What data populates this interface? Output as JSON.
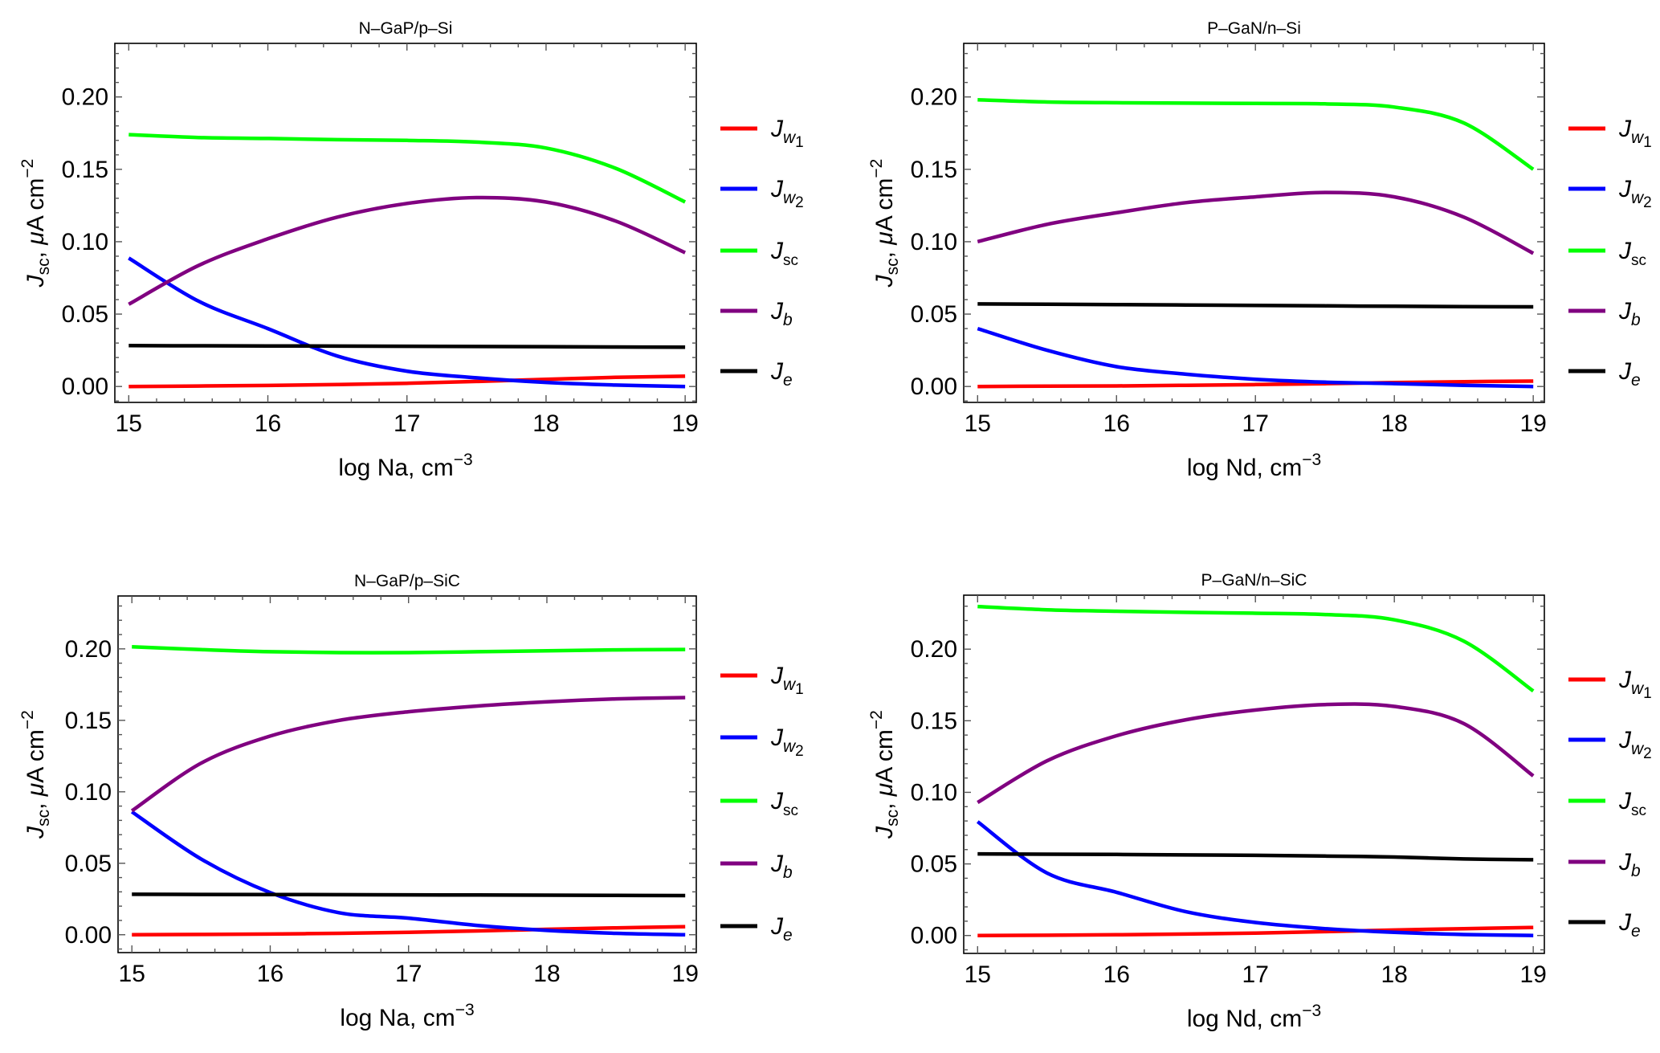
{
  "chart_data": [
    {
      "type": "line",
      "title": "N-GaP/p-Si",
      "xlabel": "log Na, cm",
      "xlabel_sup": "-3",
      "ylabel": "J_sc, μA cm^-2",
      "ylabel_parts": {
        "main": "J",
        "sub": "sc",
        "rest": ", μA cm",
        "sup": "−2"
      },
      "xlim": [
        14.9,
        19.08
      ],
      "ylim": [
        -0.011,
        0.237
      ],
      "xticks": [
        15,
        16,
        17,
        18,
        19
      ],
      "xtick_labels": [
        "15",
        "16",
        "17",
        "18",
        "19"
      ],
      "yticks": [
        0.0,
        0.05,
        0.1,
        0.15,
        0.2
      ],
      "ytick_labels": [
        "0.00",
        "0.05",
        "0.10",
        "0.15",
        "0.20"
      ],
      "grid": false,
      "legend_position": "right",
      "x": [
        15,
        15.5,
        16,
        16.5,
        17,
        17.5,
        18,
        18.5,
        19
      ],
      "series": [
        {
          "name": "J_w1",
          "label_main": "J",
          "label_sub": "w",
          "label_subsub": "1",
          "color": "#ff0000",
          "values": [
            0.0,
            0.0003,
            0.0007,
            0.0013,
            0.0022,
            0.0035,
            0.005,
            0.0063,
            0.0071
          ]
        },
        {
          "name": "J_w2",
          "label_main": "J",
          "label_sub": "w",
          "label_subsub": "2",
          "color": "#0000ff",
          "values": [
            0.0887,
            0.059,
            0.04,
            0.021,
            0.0106,
            0.006,
            0.0028,
            0.001,
            0.0
          ]
        },
        {
          "name": "J_sc",
          "label_main": "J",
          "label_sub": "sc",
          "label_subsub": "",
          "color": "#00ff00",
          "values": [
            0.174,
            0.172,
            0.1713,
            0.1705,
            0.17,
            0.1688,
            0.1647,
            0.1507,
            0.1274
          ]
        },
        {
          "name": "J_b",
          "label_main": "J",
          "label_sub": "b",
          "label_subsub": "",
          "color": "#800080",
          "values": [
            0.0568,
            0.0835,
            0.102,
            0.117,
            0.1264,
            0.1305,
            0.1274,
            0.1143,
            0.0924
          ]
        },
        {
          "name": "J_e",
          "label_main": "J",
          "label_sub": "e",
          "label_subsub": "",
          "color": "#000000",
          "values": [
            0.0282,
            0.0281,
            0.028,
            0.0279,
            0.0278,
            0.0276,
            0.0275,
            0.0273,
            0.0271
          ]
        }
      ]
    },
    {
      "type": "line",
      "title": "P-GaN/n-Si",
      "xlabel": "log Nd, cm",
      "xlabel_sup": "-3",
      "ylabel": "J_sc, μA cm^-2",
      "ylabel_parts": {
        "main": "J",
        "sub": "sc",
        "rest": ", μA cm",
        "sup": "−2"
      },
      "xlim": [
        14.9,
        19.08
      ],
      "ylim": [
        -0.011,
        0.237
      ],
      "xticks": [
        15,
        16,
        17,
        18,
        19
      ],
      "xtick_labels": [
        "15",
        "16",
        "17",
        "18",
        "19"
      ],
      "yticks": [
        0.0,
        0.05,
        0.1,
        0.15,
        0.2
      ],
      "ytick_labels": [
        "0.00",
        "0.05",
        "0.10",
        "0.15",
        "0.20"
      ],
      "grid": false,
      "legend_position": "right",
      "x": [
        15,
        15.5,
        16,
        16.5,
        17,
        17.5,
        18,
        18.5,
        19
      ],
      "series": [
        {
          "name": "J_w1",
          "label_main": "J",
          "label_sub": "w",
          "label_subsub": "1",
          "color": "#ff0000",
          "values": [
            0.0,
            0.0002,
            0.0004,
            0.0008,
            0.0013,
            0.0019,
            0.0027,
            0.0033,
            0.0037
          ]
        },
        {
          "name": "J_w2",
          "label_main": "J",
          "label_sub": "w",
          "label_subsub": "2",
          "color": "#0000ff",
          "values": [
            0.04,
            0.025,
            0.0137,
            0.0085,
            0.005,
            0.003,
            0.002,
            0.0008,
            0.0
          ]
        },
        {
          "name": "J_sc",
          "label_main": "J",
          "label_sub": "sc",
          "label_subsub": "",
          "color": "#00ff00",
          "values": [
            0.198,
            0.1965,
            0.196,
            0.1957,
            0.1955,
            0.1952,
            0.193,
            0.182,
            0.15
          ]
        },
        {
          "name": "J_b",
          "label_main": "J",
          "label_sub": "b",
          "label_subsub": "",
          "color": "#800080",
          "values": [
            0.1,
            0.112,
            0.12,
            0.127,
            0.131,
            0.134,
            0.131,
            0.117,
            0.092
          ]
        },
        {
          "name": "J_e",
          "label_main": "J",
          "label_sub": "e",
          "label_subsub": "",
          "color": "#000000",
          "values": [
            0.057,
            0.0568,
            0.0566,
            0.0563,
            0.056,
            0.0557,
            0.0554,
            0.0552,
            0.055
          ]
        }
      ]
    },
    {
      "type": "line",
      "title": "N-GaP/p-SiC",
      "xlabel": "log Na, cm",
      "xlabel_sup": "-3",
      "ylabel": "J_sc, μA cm^-2",
      "ylabel_parts": {
        "main": "J",
        "sub": "sc",
        "rest": ", μA cm",
        "sup": "−2"
      },
      "xlim": [
        14.9,
        19.08
      ],
      "ylim": [
        -0.0125,
        0.237
      ],
      "xticks": [
        15,
        16,
        17,
        18,
        19
      ],
      "xtick_labels": [
        "15",
        "16",
        "17",
        "18",
        "19"
      ],
      "yticks": [
        0.0,
        0.05,
        0.1,
        0.15,
        0.2
      ],
      "ytick_labels": [
        "0.00",
        "0.05",
        "0.10",
        "0.15",
        "0.20"
      ],
      "grid": false,
      "legend_position": "right",
      "x": [
        15,
        15.5,
        16,
        16.5,
        17,
        17.5,
        18,
        18.5,
        19
      ],
      "series": [
        {
          "name": "J_w1",
          "label_main": "J",
          "label_sub": "w",
          "label_subsub": "1",
          "color": "#ff0000",
          "values": [
            0.0,
            0.0002,
            0.0005,
            0.001,
            0.0017,
            0.0027,
            0.0038,
            0.0048,
            0.0056
          ]
        },
        {
          "name": "J_w2",
          "label_main": "J",
          "label_sub": "w",
          "label_subsub": "2",
          "color": "#0000ff",
          "values": [
            0.086,
            0.053,
            0.0295,
            0.0154,
            0.0116,
            0.0065,
            0.003,
            0.001,
            0.0
          ]
        },
        {
          "name": "J_sc",
          "label_main": "J",
          "label_sub": "sc",
          "label_subsub": "",
          "color": "#00ff00",
          "values": [
            0.2015,
            0.1995,
            0.198,
            0.1974,
            0.1974,
            0.198,
            0.1987,
            0.1993,
            0.1996
          ]
        },
        {
          "name": "J_b",
          "label_main": "J",
          "label_sub": "b",
          "label_subsub": "",
          "color": "#800080",
          "values": [
            0.0867,
            0.12,
            0.139,
            0.15,
            0.156,
            0.16,
            0.163,
            0.165,
            0.1659
          ]
        },
        {
          "name": "J_e",
          "label_main": "J",
          "label_sub": "e",
          "label_subsub": "",
          "color": "#000000",
          "values": [
            0.0283,
            0.0282,
            0.0281,
            0.028,
            0.0279,
            0.0278,
            0.0277,
            0.0275,
            0.0274
          ]
        }
      ]
    },
    {
      "type": "line",
      "title": "P-GaN/n-SiC",
      "xlabel": "log Nd, cm",
      "xlabel_sup": "-3",
      "ylabel": "J_sc, μA cm^-2",
      "ylabel_parts": {
        "main": "J",
        "sub": "sc",
        "rest": ", μA cm",
        "sup": "−2"
      },
      "xlim": [
        14.9,
        19.08
      ],
      "ylim": [
        -0.0125,
        0.2377
      ],
      "xticks": [
        15,
        16,
        17,
        18,
        19
      ],
      "xtick_labels": [
        "15",
        "16",
        "17",
        "18",
        "19"
      ],
      "yticks": [
        0.0,
        0.05,
        0.1,
        0.15,
        0.2
      ],
      "ytick_labels": [
        "0.00",
        "0.05",
        "0.10",
        "0.15",
        "0.20"
      ],
      "grid": false,
      "legend_position": "right",
      "x": [
        15,
        15.5,
        16,
        16.5,
        17,
        17.5,
        18,
        18.5,
        19
      ],
      "series": [
        {
          "name": "J_w1",
          "label_main": "J",
          "label_sub": "w",
          "label_subsub": "1",
          "color": "#ff0000",
          "values": [
            0.0,
            0.0002,
            0.0005,
            0.001,
            0.0017,
            0.0027,
            0.0038,
            0.0048,
            0.0056
          ]
        },
        {
          "name": "J_w2",
          "label_main": "J",
          "label_sub": "w",
          "label_subsub": "2",
          "color": "#0000ff",
          "values": [
            0.0795,
            0.0436,
            0.0302,
            0.0166,
            0.0091,
            0.0048,
            0.0022,
            0.0007,
            0.0
          ]
        },
        {
          "name": "J_sc",
          "label_main": "J",
          "label_sub": "sc",
          "label_subsub": "",
          "color": "#00ff00",
          "values": [
            0.2298,
            0.2275,
            0.2265,
            0.2257,
            0.2251,
            0.2242,
            0.2205,
            0.2056,
            0.1708
          ]
        },
        {
          "name": "J_b",
          "label_main": "J",
          "label_sub": "b",
          "label_subsub": "",
          "color": "#800080",
          "values": [
            0.0929,
            0.122,
            0.1395,
            0.1507,
            0.1575,
            0.1613,
            0.16,
            0.148,
            0.1115
          ]
        },
        {
          "name": "J_e",
          "label_main": "J",
          "label_sub": "e",
          "label_subsub": "",
          "color": "#000000",
          "values": [
            0.057,
            0.0568,
            0.0566,
            0.0563,
            0.056,
            0.0555,
            0.0548,
            0.0535,
            0.0529
          ]
        }
      ]
    }
  ]
}
